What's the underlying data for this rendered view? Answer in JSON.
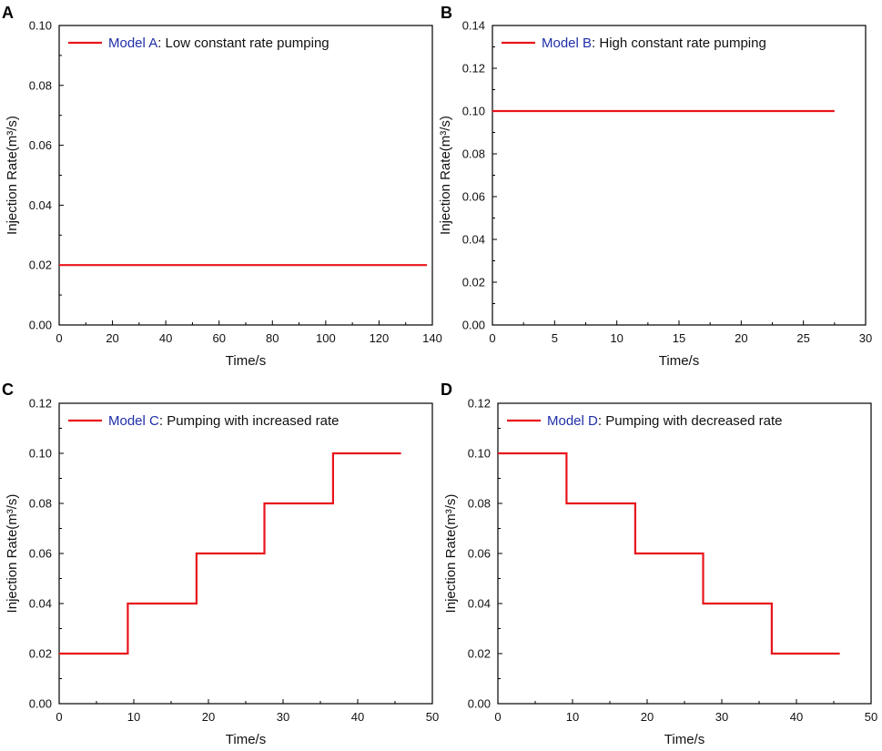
{
  "chart_data": [
    {
      "type": "line",
      "panel": "A",
      "legend": {
        "model": "Model A",
        "description": ": Low constant rate pumping"
      },
      "xlabel": "Time/s",
      "ylabel": "Injection Rate(m³/s)",
      "xlim": [
        0,
        140
      ],
      "ylim": [
        0,
        0.1
      ],
      "xticks": [
        "0",
        "20",
        "40",
        "60",
        "80",
        "100",
        "120",
        "140"
      ],
      "yticks": [
        "0.00",
        "0.02",
        "0.04",
        "0.06",
        "0.08",
        "0.10"
      ],
      "series": [
        {
          "name": "Model A",
          "color": "#e8141b",
          "x": [
            0,
            138
          ],
          "y": [
            0.02,
            0.02
          ]
        }
      ]
    },
    {
      "type": "line",
      "panel": "B",
      "legend": {
        "model": "Model B",
        "description": ": High constant rate pumping"
      },
      "xlabel": "Time/s",
      "ylabel": "Injection Rate(m³/s)",
      "xlim": [
        0,
        30
      ],
      "ylim": [
        0,
        0.14
      ],
      "xticks": [
        "0",
        "5",
        "10",
        "15",
        "20",
        "25",
        "30"
      ],
      "yticks": [
        "0.00",
        "0.02",
        "0.04",
        "0.06",
        "0.08",
        "0.10",
        "0.12",
        "0.14"
      ],
      "series": [
        {
          "name": "Model B",
          "color": "#e8141b",
          "x": [
            0,
            27.5
          ],
          "y": [
            0.1,
            0.1
          ]
        }
      ]
    },
    {
      "type": "line",
      "panel": "C",
      "legend": {
        "model": "Model C",
        "description": ": Pumping with increased rate"
      },
      "xlabel": "Time/s",
      "ylabel": "Injection Rate(m³/s)",
      "xlim": [
        0,
        50
      ],
      "ylim": [
        0,
        0.12
      ],
      "xticks": [
        "0",
        "10",
        "20",
        "30",
        "40",
        "50"
      ],
      "yticks": [
        "0.00",
        "0.02",
        "0.04",
        "0.06",
        "0.08",
        "0.10",
        "0.12"
      ],
      "series": [
        {
          "name": "Model C",
          "color": "#e8141b",
          "x": [
            0,
            9.2,
            9.2,
            18.4,
            18.4,
            27.5,
            27.5,
            36.7,
            36.7,
            45.8
          ],
          "y": [
            0.02,
            0.02,
            0.04,
            0.04,
            0.06,
            0.06,
            0.08,
            0.08,
            0.1,
            0.1
          ]
        }
      ]
    },
    {
      "type": "line",
      "panel": "D",
      "legend": {
        "model": "Model D",
        "description": ": Pumping with decreased rate"
      },
      "xlabel": "Time/s",
      "ylabel": "Injection Rate(m³/s)",
      "xlim": [
        0,
        50
      ],
      "ylim": [
        0,
        0.12
      ],
      "xticks": [
        "0",
        "10",
        "20",
        "30",
        "40",
        "50"
      ],
      "yticks": [
        "0.00",
        "0.02",
        "0.04",
        "0.06",
        "0.08",
        "0.10",
        "0.12"
      ],
      "series": [
        {
          "name": "Model D",
          "color": "#e8141b",
          "x": [
            0,
            9.2,
            9.2,
            18.4,
            18.4,
            27.5,
            27.5,
            36.7,
            36.7,
            45.8
          ],
          "y": [
            0.1,
            0.1,
            0.08,
            0.08,
            0.06,
            0.06,
            0.04,
            0.04,
            0.02,
            0.02
          ]
        }
      ]
    }
  ]
}
